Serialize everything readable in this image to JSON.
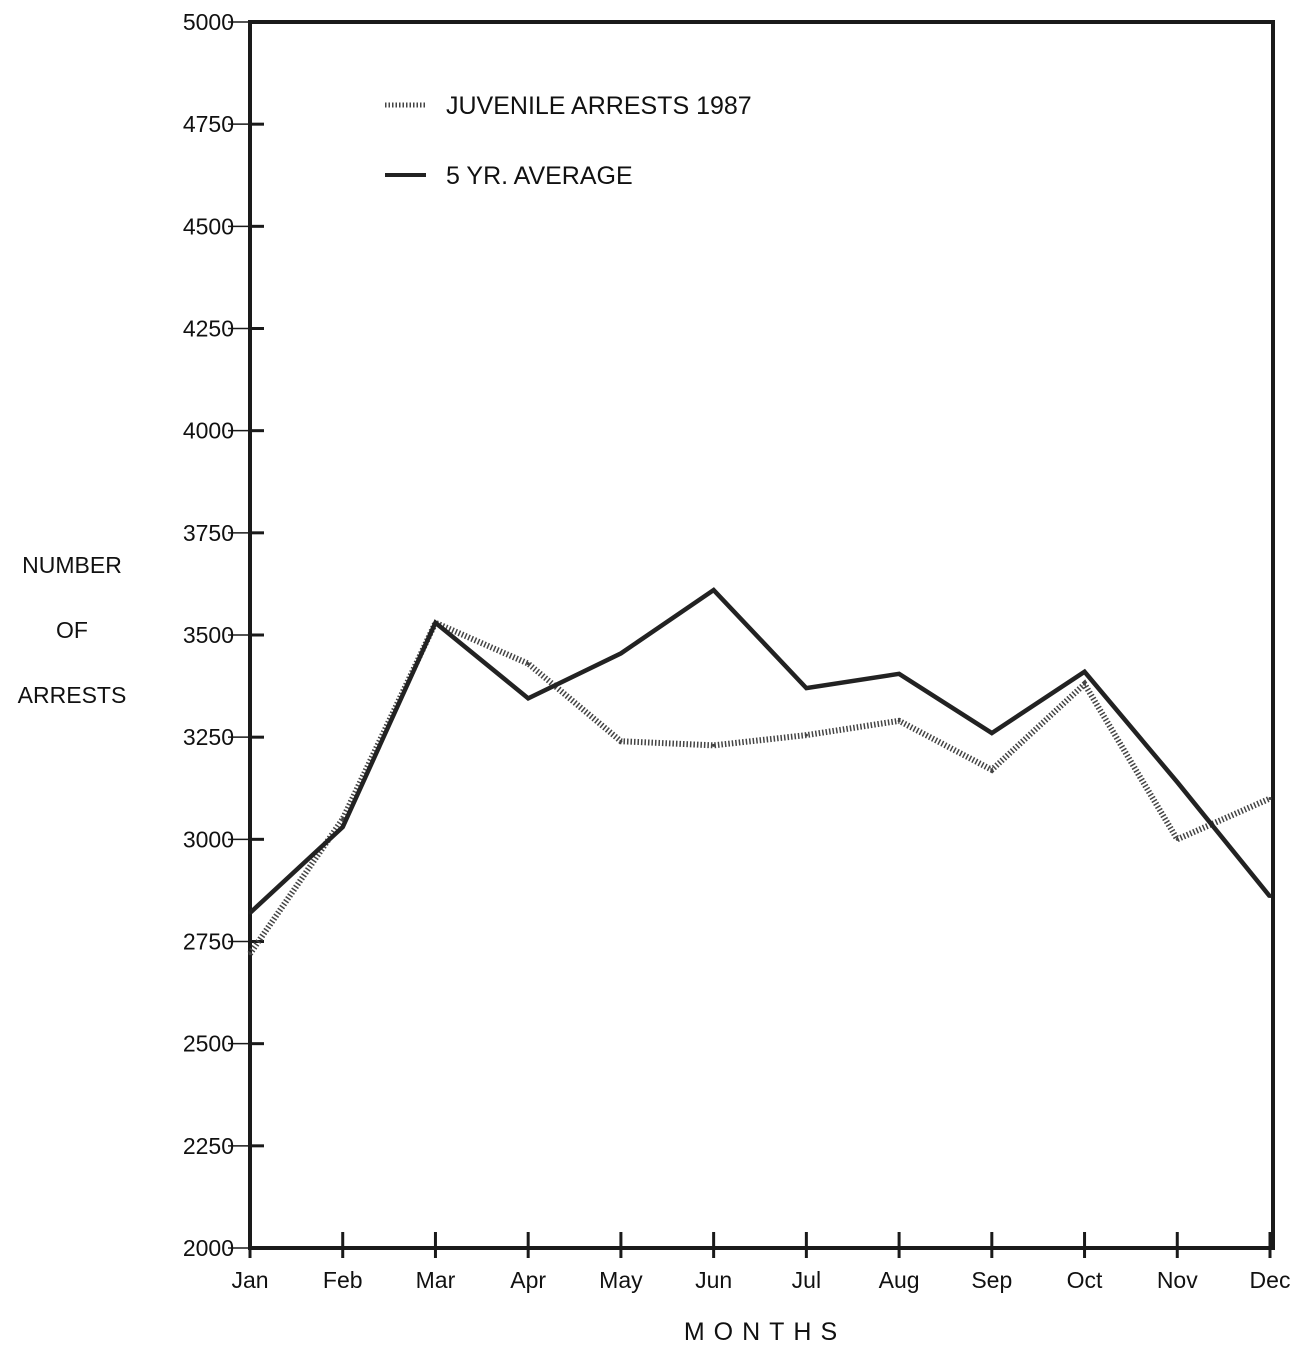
{
  "chart_data": {
    "type": "line",
    "title": "",
    "xlabel": "MONTHS",
    "ylabel_lines": [
      "NUMBER",
      "OF",
      "ARRESTS"
    ],
    "categories": [
      "Jan",
      "Feb",
      "Mar",
      "Apr",
      "May",
      "Jun",
      "Jul",
      "Aug",
      "Sep",
      "Oct",
      "Nov",
      "Dec"
    ],
    "ylim": [
      2000,
      5000
    ],
    "yticks": [
      2000,
      2250,
      2500,
      2750,
      3000,
      3250,
      3500,
      3750,
      4000,
      4250,
      4500,
      4750,
      5000
    ],
    "grid": false,
    "legend_position": "top-left",
    "series": [
      {
        "name": "JUVENILE ARRESTS 1987",
        "style": "dotted",
        "color": "#444444",
        "values": [
          2720,
          3050,
          3530,
          3430,
          3240,
          3230,
          3255,
          3290,
          3170,
          3380,
          3000,
          3100
        ]
      },
      {
        "name": "5 YR. AVERAGE",
        "style": "solid",
        "color": "#222222",
        "values": [
          2820,
          3030,
          3530,
          3345,
          3455,
          3610,
          3370,
          3405,
          3260,
          3410,
          3140,
          2860
        ]
      }
    ]
  }
}
